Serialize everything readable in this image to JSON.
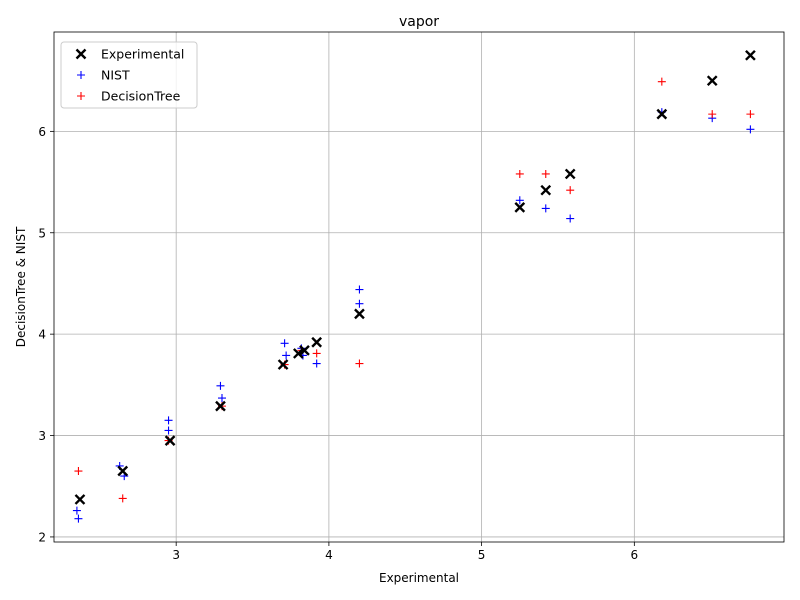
{
  "chart_data": {
    "type": "scatter",
    "title": "vapor",
    "xlabel": "Experimental",
    "ylabel": "DecisionTree & NIST",
    "xlim": [
      2.2,
      6.98
    ],
    "ylim": [
      1.95,
      6.98
    ],
    "xticks": [
      3,
      4,
      5,
      6
    ],
    "yticks": [
      2,
      3,
      4,
      5,
      6
    ],
    "grid": true,
    "legend_position": "top-left",
    "series": [
      {
        "name": "Experimental",
        "marker": "x",
        "color": "#000000",
        "points": [
          [
            2.37,
            2.37
          ],
          [
            2.65,
            2.65
          ],
          [
            2.96,
            2.95
          ],
          [
            3.29,
            3.29
          ],
          [
            3.7,
            3.7
          ],
          [
            3.8,
            3.81
          ],
          [
            3.84,
            3.84
          ],
          [
            3.92,
            3.92
          ],
          [
            4.2,
            4.2
          ],
          [
            5.25,
            5.25
          ],
          [
            5.42,
            5.42
          ],
          [
            5.58,
            5.58
          ],
          [
            6.18,
            6.17
          ],
          [
            6.51,
            6.5
          ],
          [
            6.76,
            6.75
          ]
        ]
      },
      {
        "name": "NIST",
        "marker": "+",
        "color": "#0000ff",
        "points": [
          [
            2.35,
            2.26
          ],
          [
            2.36,
            2.18
          ],
          [
            2.63,
            2.7
          ],
          [
            2.66,
            2.6
          ],
          [
            2.95,
            3.15
          ],
          [
            2.95,
            3.05
          ],
          [
            3.29,
            3.49
          ],
          [
            3.3,
            3.37
          ],
          [
            3.71,
            3.91
          ],
          [
            3.72,
            3.79
          ],
          [
            3.82,
            3.86
          ],
          [
            3.83,
            3.79
          ],
          [
            3.92,
            3.71
          ],
          [
            4.2,
            4.44
          ],
          [
            4.2,
            4.3
          ],
          [
            5.25,
            5.32
          ],
          [
            5.42,
            5.24
          ],
          [
            5.58,
            5.14
          ],
          [
            6.18,
            6.19
          ],
          [
            6.51,
            6.13
          ],
          [
            6.76,
            6.02
          ]
        ]
      },
      {
        "name": "DecisionTree",
        "marker": "+",
        "color": "#ff0000",
        "points": [
          [
            2.36,
            2.65
          ],
          [
            2.65,
            2.38
          ],
          [
            2.95,
            2.95
          ],
          [
            3.3,
            3.29
          ],
          [
            3.71,
            3.7
          ],
          [
            3.82,
            3.84
          ],
          [
            3.92,
            3.81
          ],
          [
            4.2,
            3.71
          ],
          [
            5.25,
            5.58
          ],
          [
            5.42,
            5.58
          ],
          [
            5.58,
            5.42
          ],
          [
            6.18,
            6.49
          ],
          [
            6.51,
            6.17
          ],
          [
            6.76,
            6.17
          ]
        ]
      }
    ]
  }
}
